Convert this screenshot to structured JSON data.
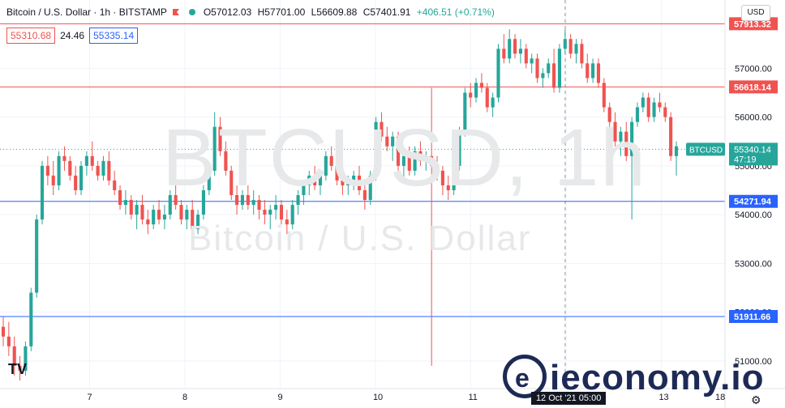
{
  "header": {
    "symbol": "Bitcoin / U.S. Dollar · 1h · BITSTAMP",
    "open": "O57012.03",
    "high": "H57701.00",
    "low": "L56609.88",
    "close": "C57401.91",
    "change": "+406.51 (+0.71%)"
  },
  "quote": {
    "sell": "55310.68",
    "spread": "24.46",
    "buy": "55335.14"
  },
  "currency_button": "USD",
  "watermark": {
    "ticker": "BTCUSD, 1h",
    "name": "Bitcoin / U.S. Dollar"
  },
  "colors": {
    "up": "#26a69a",
    "down": "#ef5350",
    "resistance": "#ef5350",
    "support": "#2962ff",
    "last_price": "#26a69a"
  },
  "chart_data": {
    "type": "candlestick",
    "y_range": [
      50600,
      58400
    ],
    "y_ticks": [
      51000,
      52000,
      53000,
      54000,
      55000,
      56000,
      57000
    ],
    "y_tick_labels": [
      "51000.00",
      "52000.00",
      "53000.00",
      "54000.00",
      "55000.00",
      "56000.00",
      "57000.00"
    ],
    "x_labels": [
      "7",
      "8",
      "9",
      "10",
      "11",
      "12 Oct '21  05:00",
      "13",
      "18"
    ],
    "x_label_days": [
      7,
      8,
      9,
      10,
      11,
      12,
      13,
      18
    ],
    "crosshair_day": 12,
    "grid": true,
    "levels": [
      {
        "label": "57913.32",
        "price": 57913.32,
        "kind": "resistance"
      },
      {
        "label": "56618.14",
        "price": 56618.14,
        "kind": "resistance"
      },
      {
        "label": "54271.94",
        "price": 54271.94,
        "kind": "support"
      },
      {
        "label": "51911.66",
        "price": 51911.66,
        "kind": "support"
      }
    ],
    "last_price": {
      "symbol": "BTCUSD",
      "price": "55340.14",
      "countdown": "47:19",
      "value": 55340.14
    },
    "candles": [
      [
        51700,
        51900,
        51300,
        51500
      ],
      [
        51500,
        51800,
        51100,
        51300
      ],
      [
        51300,
        51500,
        50700,
        50900
      ],
      [
        50900,
        51100,
        50600,
        50800
      ],
      [
        50800,
        51400,
        50700,
        51300
      ],
      [
        51300,
        52500,
        51200,
        52400
      ],
      [
        52400,
        54000,
        52300,
        53900
      ],
      [
        53900,
        55100,
        53800,
        55000
      ],
      [
        55000,
        55200,
        54600,
        54800
      ],
      [
        54800,
        55100,
        54400,
        54600
      ],
      [
        54600,
        55300,
        54500,
        55200
      ],
      [
        55200,
        55400,
        54900,
        55100
      ],
      [
        55100,
        55200,
        54700,
        54800
      ],
      [
        54800,
        55000,
        54400,
        54500
      ],
      [
        54500,
        55100,
        54400,
        55000
      ],
      [
        55000,
        55300,
        54800,
        55200
      ],
      [
        55200,
        55500,
        54900,
        55000
      ],
      [
        55000,
        55100,
        54700,
        54800
      ],
      [
        54800,
        55200,
        54700,
        55100
      ],
      [
        55100,
        55300,
        54600,
        54700
      ],
      [
        54700,
        54900,
        54400,
        54500
      ],
      [
        54500,
        54600,
        54100,
        54200
      ],
      [
        54200,
        54500,
        54000,
        54300
      ],
      [
        54300,
        54400,
        53900,
        54000
      ],
      [
        54000,
        54300,
        53700,
        54200
      ],
      [
        54200,
        54400,
        53800,
        53900
      ],
      [
        53900,
        54100,
        53600,
        53800
      ],
      [
        53800,
        54200,
        53700,
        54100
      ],
      [
        54100,
        54300,
        53800,
        53900
      ],
      [
        53900,
        54200,
        53700,
        54000
      ],
      [
        54000,
        54500,
        53900,
        54400
      ],
      [
        54400,
        54600,
        54100,
        54200
      ],
      [
        54200,
        54300,
        53800,
        53900
      ],
      [
        53900,
        54200,
        53700,
        54100
      ],
      [
        54100,
        54300,
        53600,
        53700
      ],
      [
        53700,
        54100,
        53600,
        54000
      ],
      [
        54000,
        54600,
        53900,
        54500
      ],
      [
        54500,
        55000,
        54400,
        54900
      ],
      [
        54900,
        56100,
        54800,
        55800
      ],
      [
        55800,
        56000,
        55200,
        55300
      ],
      [
        55300,
        55500,
        54800,
        54900
      ],
      [
        54900,
        55000,
        54300,
        54400
      ],
      [
        54400,
        54600,
        54000,
        54200
      ],
      [
        54200,
        54500,
        54100,
        54400
      ],
      [
        54400,
        54600,
        54100,
        54200
      ],
      [
        54200,
        54500,
        54000,
        54300
      ],
      [
        54300,
        54400,
        53900,
        54100
      ],
      [
        54100,
        54300,
        53800,
        54000
      ],
      [
        54000,
        54200,
        53700,
        54100
      ],
      [
        54100,
        54400,
        53900,
        54200
      ],
      [
        54200,
        54300,
        53800,
        53900
      ],
      [
        53900,
        54100,
        53600,
        53800
      ],
      [
        53800,
        54300,
        53700,
        54200
      ],
      [
        54200,
        54500,
        54000,
        54400
      ],
      [
        54400,
        54700,
        54200,
        54600
      ],
      [
        54600,
        54900,
        54400,
        54800
      ],
      [
        54800,
        55000,
        54500,
        54600
      ],
      [
        54600,
        54900,
        54400,
        54800
      ],
      [
        54800,
        55300,
        54700,
        55200
      ],
      [
        55200,
        55400,
        54900,
        55000
      ],
      [
        55000,
        55200,
        54600,
        54700
      ],
      [
        54700,
        54900,
        54400,
        54600
      ],
      [
        54600,
        54800,
        54400,
        54700
      ],
      [
        54700,
        54900,
        54500,
        54800
      ],
      [
        54800,
        55000,
        54400,
        54500
      ],
      [
        54500,
        54700,
        54100,
        54300
      ],
      [
        54300,
        54900,
        54200,
        54800
      ],
      [
        54800,
        56000,
        54700,
        55900
      ],
      [
        55900,
        56100,
        55500,
        55600
      ],
      [
        55600,
        55800,
        55300,
        55400
      ],
      [
        55400,
        55700,
        55100,
        55600
      ],
      [
        55600,
        55700,
        54900,
        55000
      ],
      [
        55000,
        55300,
        54700,
        55200
      ],
      [
        55200,
        55400,
        54800,
        54900
      ],
      [
        54900,
        55400,
        54800,
        55300
      ],
      [
        55300,
        55500,
        55000,
        55100
      ],
      [
        55100,
        55300,
        54900,
        55200
      ],
      [
        55200,
        56600,
        50900,
        55000
      ],
      [
        55000,
        55200,
        54700,
        54900
      ],
      [
        54900,
        55000,
        54400,
        54600
      ],
      [
        54600,
        54800,
        54300,
        54500
      ],
      [
        54500,
        55100,
        54400,
        55000
      ],
      [
        55000,
        55800,
        54900,
        55700
      ],
      [
        55700,
        56600,
        55600,
        56500
      ],
      [
        56500,
        56700,
        56200,
        56400
      ],
      [
        56400,
        56800,
        56300,
        56700
      ],
      [
        56700,
        56900,
        56500,
        56600
      ],
      [
        56600,
        56700,
        56100,
        56200
      ],
      [
        56200,
        56500,
        56000,
        56400
      ],
      [
        56400,
        57500,
        56300,
        57400
      ],
      [
        57400,
        57700,
        57100,
        57200
      ],
      [
        57200,
        57800,
        57100,
        57600
      ],
      [
        57600,
        57700,
        57200,
        57300
      ],
      [
        57300,
        57600,
        57100,
        57400
      ],
      [
        57400,
        57500,
        57000,
        57100
      ],
      [
        57100,
        57300,
        56900,
        57200
      ],
      [
        57200,
        57300,
        56700,
        56800
      ],
      [
        56800,
        57000,
        56600,
        56900
      ],
      [
        56900,
        57200,
        56800,
        57100
      ],
      [
        57100,
        57400,
        56500,
        56600
      ],
      [
        56600,
        57500,
        56500,
        57400
      ],
      [
        57400,
        57800,
        57300,
        57600
      ],
      [
        57600,
        57700,
        57200,
        57300
      ],
      [
        57300,
        57600,
        57100,
        57500
      ],
      [
        57500,
        57600,
        57000,
        57100
      ],
      [
        57100,
        57300,
        56700,
        56800
      ],
      [
        56800,
        57200,
        56700,
        57100
      ],
      [
        57100,
        57200,
        56600,
        56700
      ],
      [
        56700,
        56800,
        56100,
        56200
      ],
      [
        56200,
        56300,
        55800,
        55900
      ],
      [
        55900,
        56100,
        55400,
        55500
      ],
      [
        55500,
        55800,
        55200,
        55700
      ],
      [
        55700,
        55900,
        55100,
        55200
      ],
      [
        55200,
        56000,
        53900,
        55900
      ],
      [
        55900,
        56300,
        55800,
        56200
      ],
      [
        56200,
        56500,
        56100,
        56400
      ],
      [
        56400,
        56500,
        55900,
        56000
      ],
      [
        56000,
        56400,
        55900,
        56300
      ],
      [
        56300,
        56500,
        56100,
        56200
      ],
      [
        56200,
        56300,
        55900,
        56000
      ],
      [
        56000,
        56100,
        55100,
        55200
      ],
      [
        55200,
        55500,
        54800,
        55400
      ]
    ]
  }
}
